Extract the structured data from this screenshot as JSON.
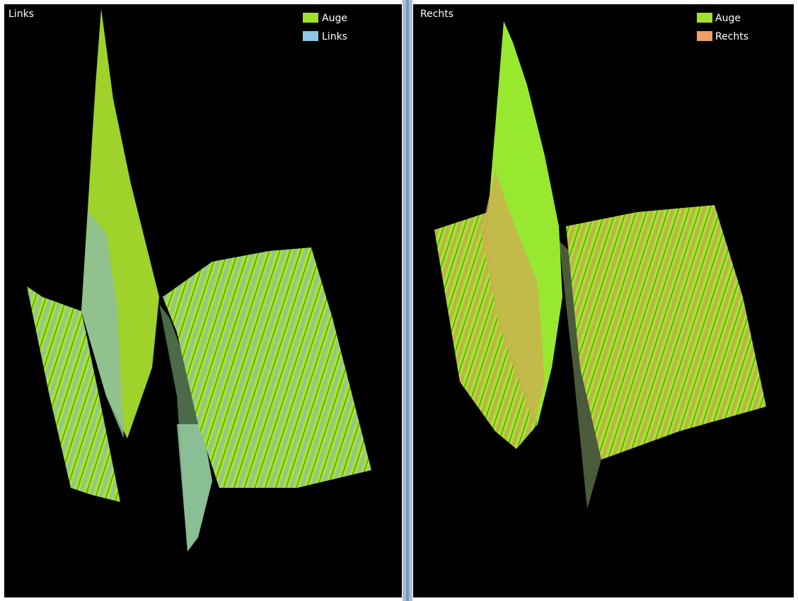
{
  "panels": [
    {
      "title": "Links",
      "legend": [
        {
          "label": "Auge",
          "color": "#9fe42a"
        },
        {
          "label": "Links",
          "color": "#8cc8e4"
        }
      ]
    },
    {
      "title": "Rechts",
      "legend": [
        {
          "label": "Auge",
          "color": "#9fe42a"
        },
        {
          "label": "Rechts",
          "color": "#eea066"
        }
      ]
    }
  ]
}
